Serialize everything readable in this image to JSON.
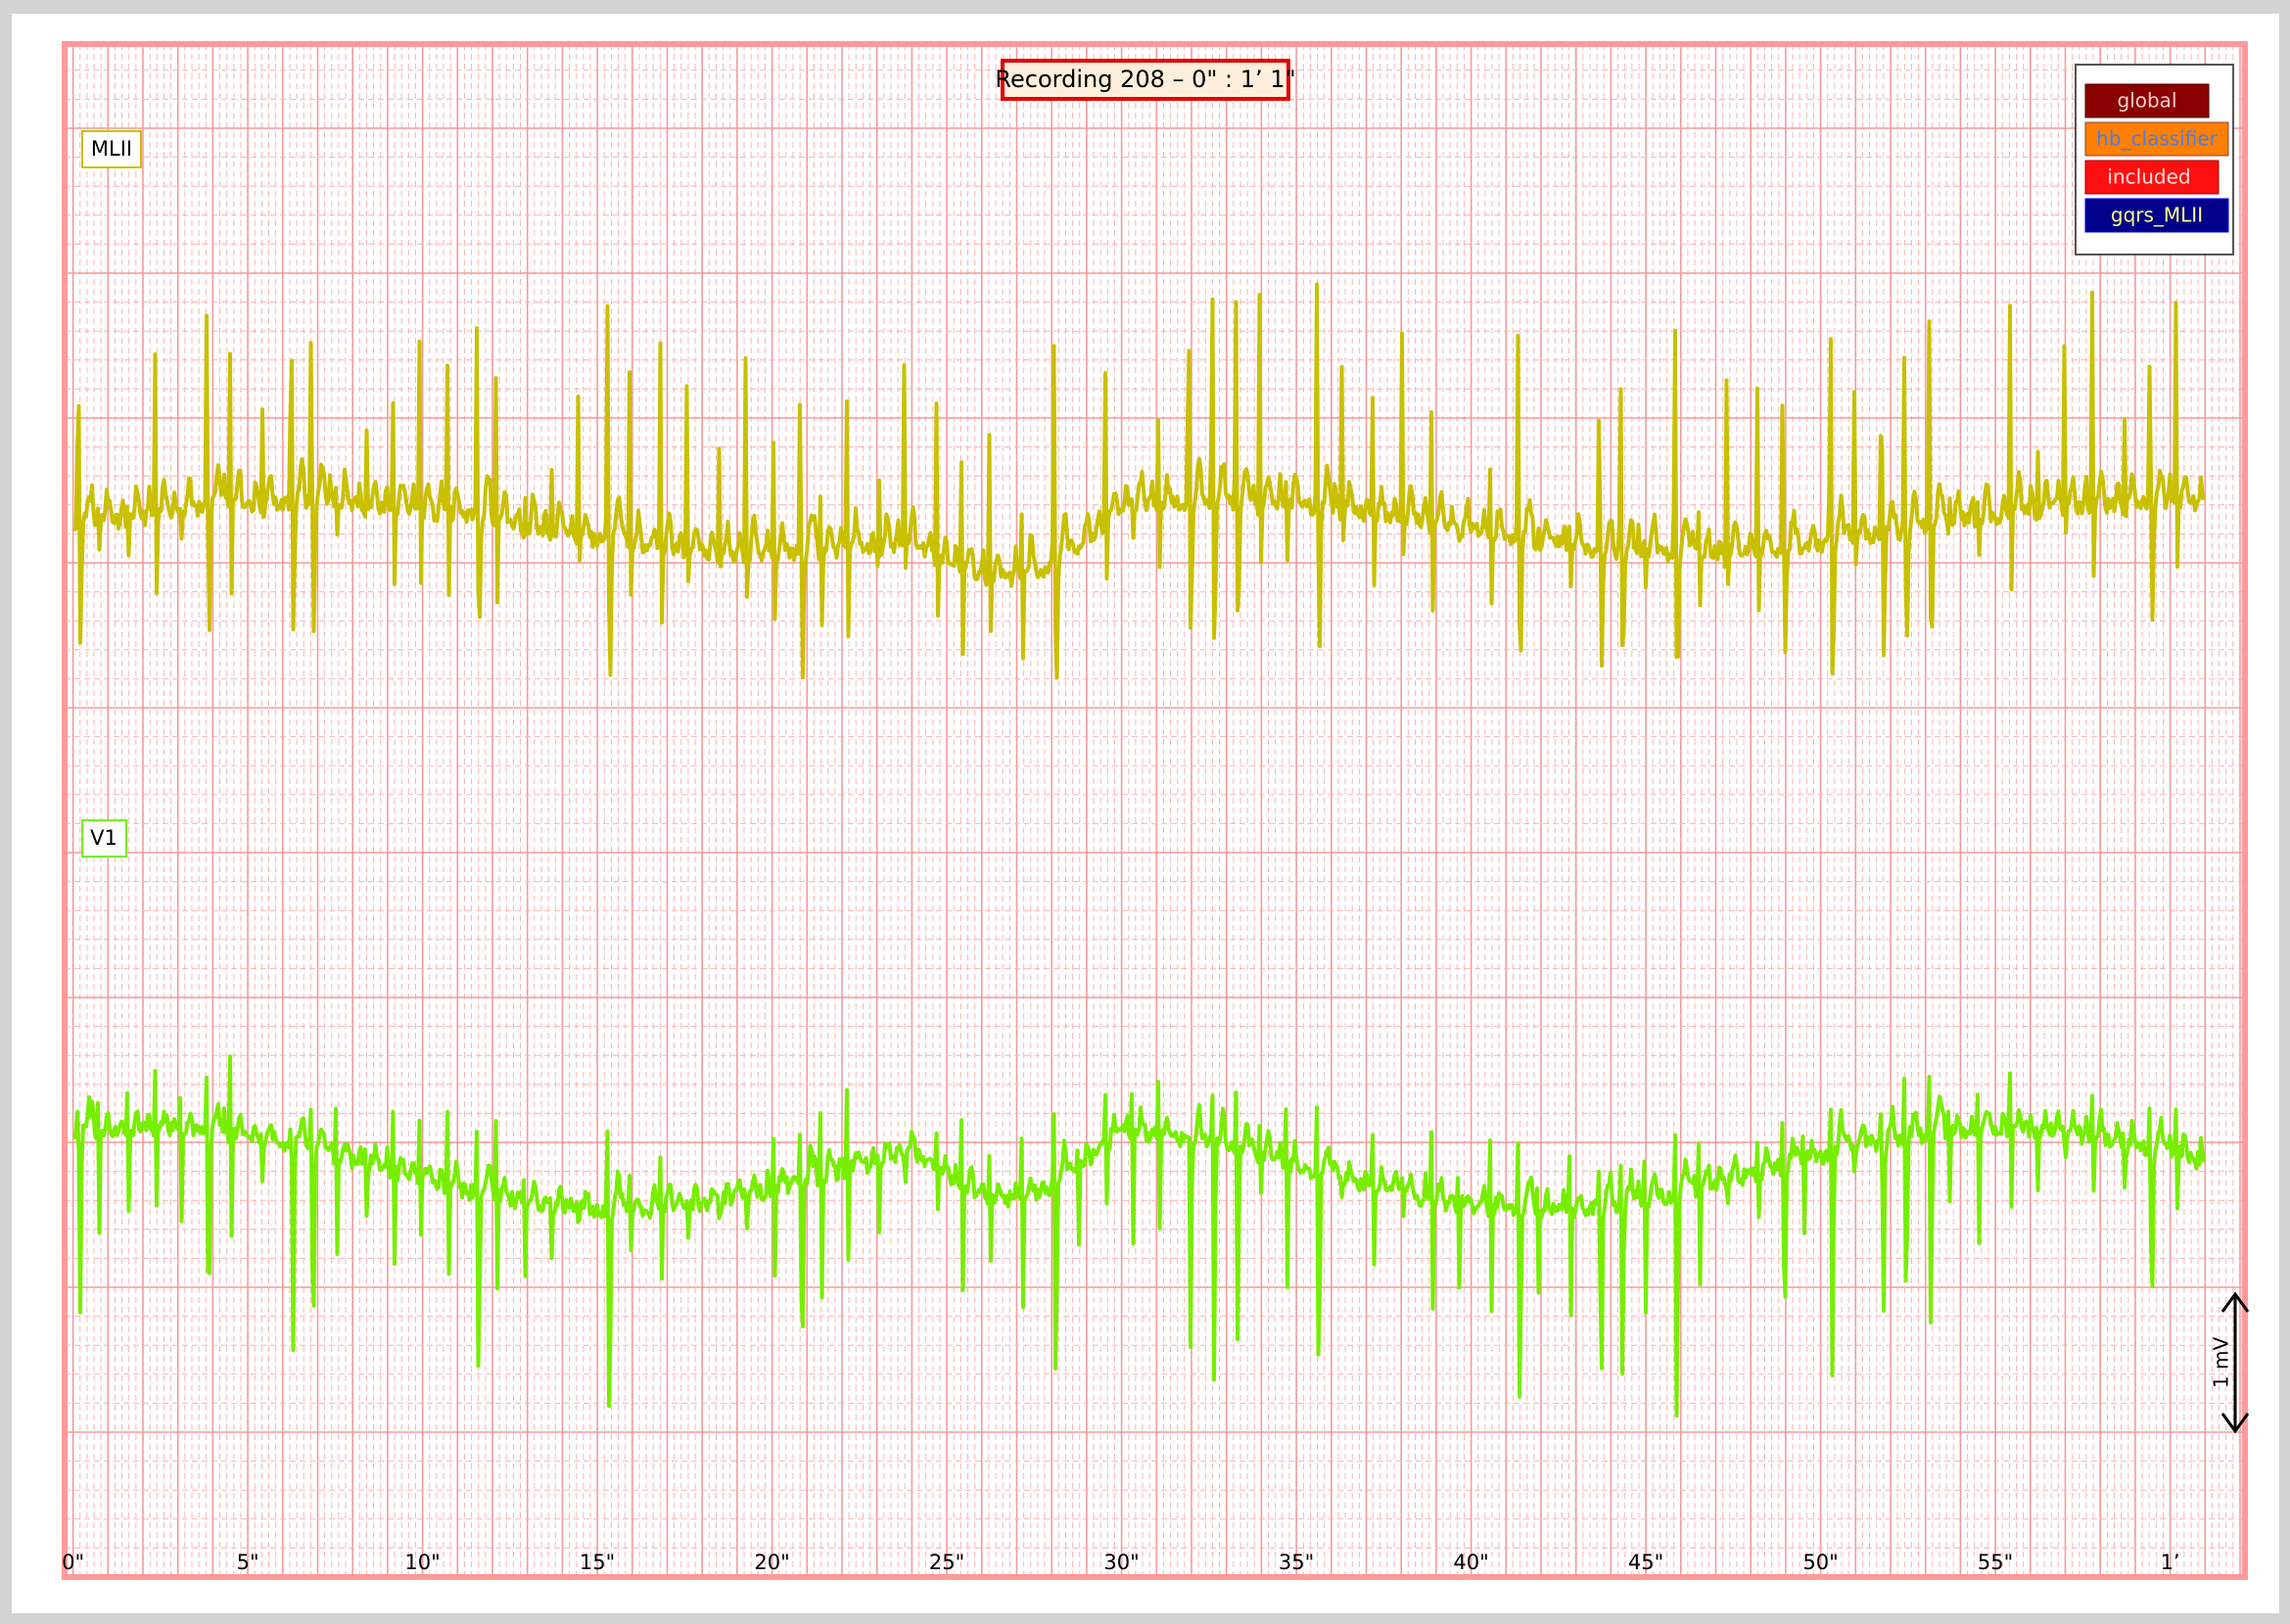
{
  "header": {
    "title": "Recording 208 – 0\" : 1’ 1\""
  },
  "leads": [
    {
      "label": "MLII"
    },
    {
      "label": "V1"
    }
  ],
  "legend": [
    {
      "label": "global"
    },
    {
      "label": "hb_classifier"
    },
    {
      "label": "included"
    },
    {
      "label": "gqrs_MLII"
    }
  ],
  "x_ticks": [
    "0\"",
    "5\"",
    "10\"",
    "15\"",
    "20\"",
    "25\"",
    "30\"",
    "35\"",
    "40\"",
    "45\"",
    "50\"",
    "55\"",
    "1’"
  ],
  "scale": {
    "label": "1 mV"
  }
}
